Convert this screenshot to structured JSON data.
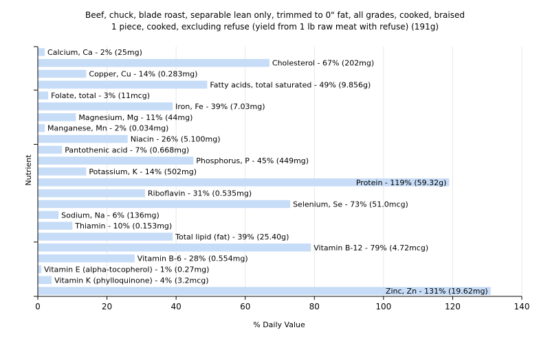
{
  "chart_data": {
    "type": "bar",
    "orientation": "horizontal",
    "title": "Beef, chuck, blade roast, separable lean only, trimmed to 0\" fat, all grades, cooked, braised",
    "subtitle": "1 piece, cooked, excluding refuse (yield from 1 lb raw meat with refuse) (191g)",
    "xlabel": "% Daily Value",
    "ylabel": "Nutrient",
    "xlim": [
      0,
      140
    ],
    "xticks": [
      0,
      20,
      40,
      60,
      80,
      100,
      120,
      140
    ],
    "grid": true,
    "bar_color": "#c6dcf7",
    "categories": [
      "Calcium, Ca",
      "Cholesterol",
      "Copper, Cu",
      "Fatty acids, total saturated",
      "Folate, total",
      "Iron, Fe",
      "Magnesium, Mg",
      "Manganese, Mn",
      "Niacin",
      "Pantothenic acid",
      "Phosphorus, P",
      "Potassium, K",
      "Protein",
      "Riboflavin",
      "Selenium, Se",
      "Sodium, Na",
      "Thiamin",
      "Total lipid (fat)",
      "Vitamin B-12",
      "Vitamin B-6",
      "Vitamin E (alpha-tocopherol)",
      "Vitamin K (phylloquinone)",
      "Zinc, Zn"
    ],
    "values": [
      2,
      67,
      14,
      49,
      3,
      39,
      11,
      2,
      26,
      7,
      45,
      14,
      119,
      31,
      73,
      6,
      10,
      39,
      79,
      28,
      1,
      4,
      131
    ],
    "labels": [
      "Calcium, Ca - 2% (25mg)",
      "Cholesterol - 67% (202mg)",
      "Copper, Cu - 14% (0.283mg)",
      "Fatty acids, total saturated - 49% (9.856g)",
      "Folate, total - 3% (11mcg)",
      "Iron, Fe - 39% (7.03mg)",
      "Magnesium, Mg - 11% (44mg)",
      "Manganese, Mn - 2% (0.034mg)",
      "Niacin - 26% (5.100mg)",
      "Pantothenic acid - 7% (0.668mg)",
      "Phosphorus, P - 45% (449mg)",
      "Potassium, K - 14% (502mg)",
      "Protein - 119% (59.32g)",
      "Riboflavin - 31% (0.535mg)",
      "Selenium, Se - 73% (51.0mcg)",
      "Sodium, Na - 6% (136mg)",
      "Thiamin - 10% (0.153mg)",
      "Total lipid (fat) - 39% (25.40g)",
      "Vitamin B-12 - 79% (4.72mcg)",
      "Vitamin B-6 - 28% (0.554mg)",
      "Vitamin E (alpha-tocopherol) - 1% (0.27mg)",
      "Vitamin K (phylloquinone) - 4% (3.2mcg)",
      "Zinc, Zn - 131% (19.62mg)"
    ]
  }
}
